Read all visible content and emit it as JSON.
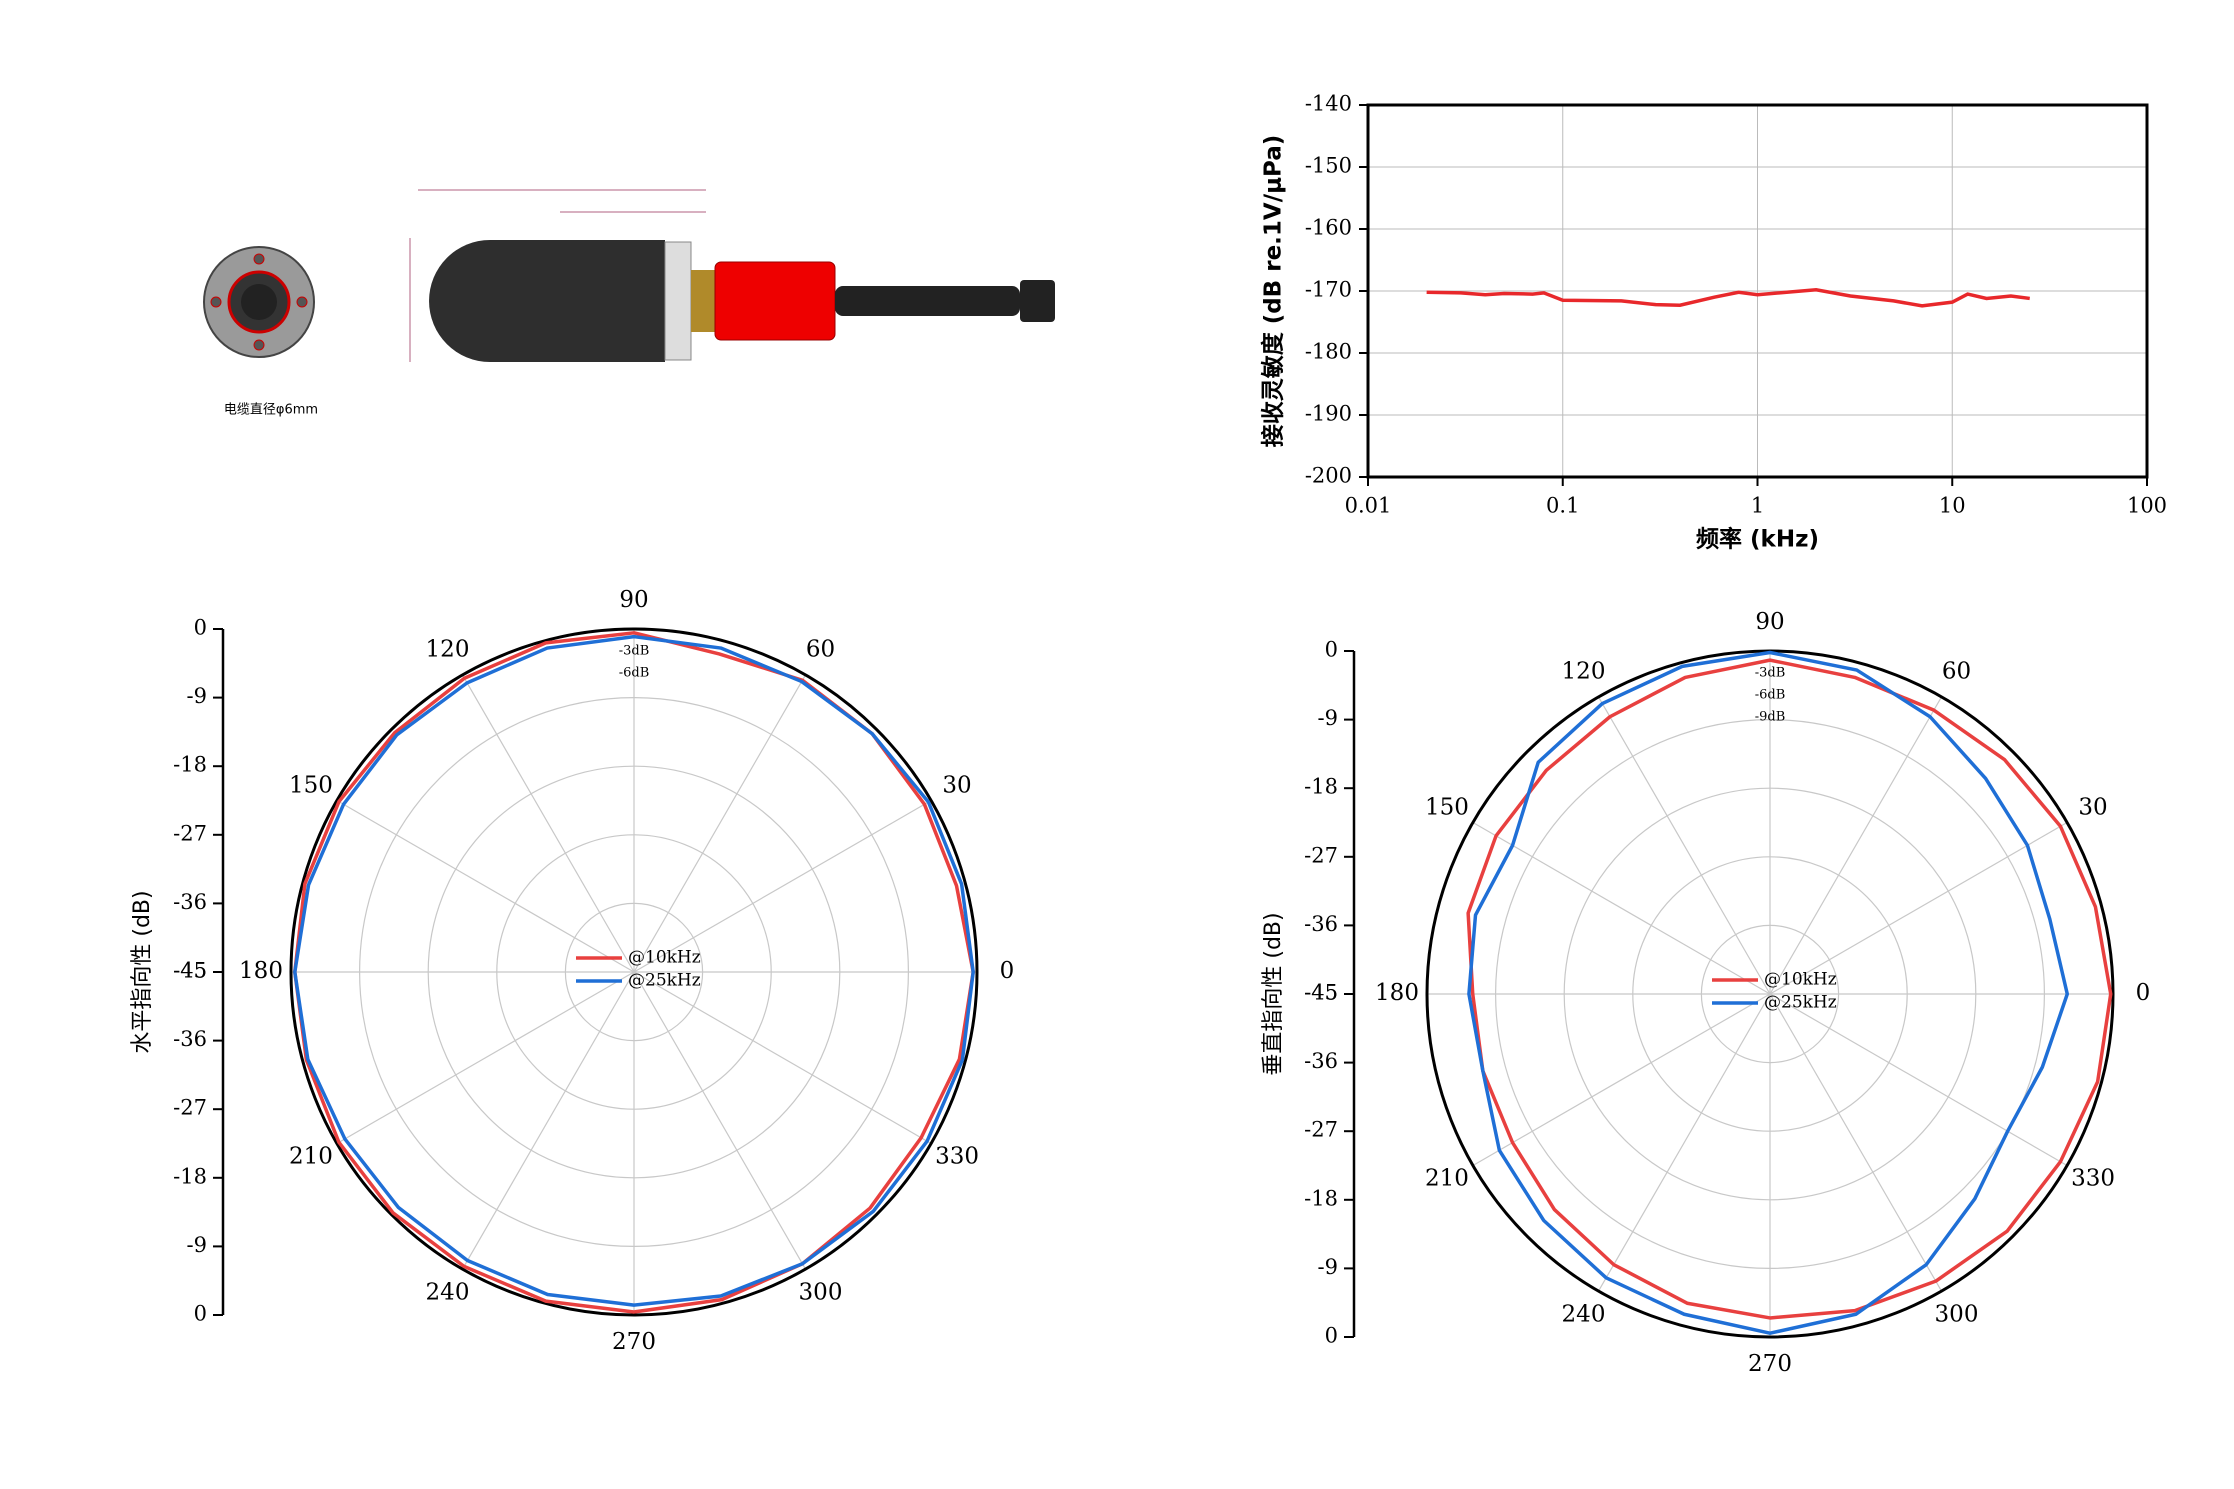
{
  "drawing": {
    "caption": "电缆直径φ6mm"
  },
  "chart_data": [
    {
      "type": "line",
      "y_label": "接收灵敏度 (dB re.1V/μPa)",
      "x_label": "频率 (kHz)",
      "x_scale": "log",
      "x": [
        0.02,
        0.03,
        0.04,
        0.05,
        0.07,
        0.08,
        0.1,
        0.2,
        0.3,
        0.4,
        0.6,
        0.8,
        1,
        2,
        3,
        5,
        7,
        10,
        12,
        15,
        20,
        25
      ],
      "values": [
        -170.2,
        -170.3,
        -170.6,
        -170.4,
        -170.5,
        -170.3,
        -171.5,
        -171.6,
        -172.2,
        -172.3,
        -171.0,
        -170.2,
        -170.6,
        -169.8,
        -170.8,
        -171.6,
        -172.4,
        -171.8,
        -170.5,
        -171.2,
        -170.8,
        -171.2
      ],
      "color": "#e8282b",
      "xlim": [
        0.01,
        100
      ],
      "xticks": [
        0.01,
        0.1,
        1,
        10,
        100
      ],
      "ylim": [
        -200,
        -140
      ],
      "yticks": [
        -140,
        -150,
        -160,
        -170,
        -180,
        -190,
        -200
      ],
      "grid": true
    },
    {
      "type": "polar",
      "y_label": "水平指向性 (dB)",
      "theta": [
        0,
        15,
        30,
        45,
        60,
        75,
        90,
        105,
        120,
        135,
        150,
        165,
        180,
        195,
        210,
        225,
        240,
        255,
        270,
        285,
        300,
        315,
        330,
        345
      ],
      "thetaticks": [
        0,
        30,
        60,
        90,
        120,
        150,
        180,
        210,
        240,
        270,
        300,
        330
      ],
      "rlim": [
        -45,
        0
      ],
      "rticks": [
        0,
        -9,
        -18,
        -27,
        -36,
        -45
      ],
      "annotations": [
        "-3dB",
        "-6dB"
      ],
      "legend_position": "center",
      "series": [
        {
          "name": "@10kHz",
          "color": "#e8403f",
          "values": [
            -0.5,
            -1.2,
            -1,
            -0.8,
            -0.8,
            -1.8,
            -0.5,
            -0.3,
            -0.5,
            -0.6,
            -0.3,
            -0.3,
            -0.5,
            -0.5,
            -0.3,
            -0.3,
            -0.4,
            -0.3,
            -0.4,
            -0.5,
            -0.8,
            -1.2,
            -1.5,
            -0.8
          ]
        },
        {
          "name": "@25kHz",
          "color": "#1f6fd6",
          "values": [
            -0.5,
            -0.5,
            -0.4,
            -0.8,
            -1,
            -1,
            -1,
            -1,
            -1.2,
            -1,
            -1,
            -0.8,
            -0.5,
            -0.7,
            -1.2,
            -1.3,
            -1.3,
            -1.2,
            -1.3,
            -1,
            -0.8,
            -0.6,
            -0.6,
            -0.4
          ]
        }
      ]
    },
    {
      "type": "polar",
      "y_label": "垂直指向性 (dB)",
      "theta": [
        0,
        15,
        30,
        45,
        60,
        75,
        90,
        105,
        120,
        135,
        150,
        165,
        180,
        195,
        210,
        225,
        240,
        255,
        270,
        285,
        300,
        315,
        330,
        345
      ],
      "thetaticks": [
        0,
        30,
        60,
        90,
        120,
        150,
        180,
        210,
        240,
        270,
        300,
        330
      ],
      "rlim": [
        -45,
        0
      ],
      "rticks": [
        0,
        -9,
        -18,
        -27,
        -36,
        -45
      ],
      "annotations": [
        "-3dB",
        "-6dB",
        "-9dB"
      ],
      "legend_position": "center",
      "series": [
        {
          "name": "@10kHz",
          "color": "#e8403f",
          "values": [
            -0.3,
            -0.8,
            -1,
            -1.5,
            -2,
            -2,
            -1.2,
            -2,
            -3,
            -3.5,
            -3.5,
            -4,
            -6,
            -6,
            -6,
            -5,
            -4,
            -3,
            -2.5,
            -2,
            -1.5,
            -1,
            -1,
            -0.5
          ]
        },
        {
          "name": "@25kHz",
          "color": "#1f6fd6",
          "values": [
            -6,
            -7,
            -6,
            -5,
            -3,
            -1,
            -0.2,
            -0.5,
            -1,
            -2,
            -6,
            -5,
            -5.5,
            -6,
            -4,
            -3,
            -2,
            -1.5,
            -0.5,
            -1.5,
            -4,
            -7,
            -9,
            -8
          ]
        }
      ]
    }
  ]
}
